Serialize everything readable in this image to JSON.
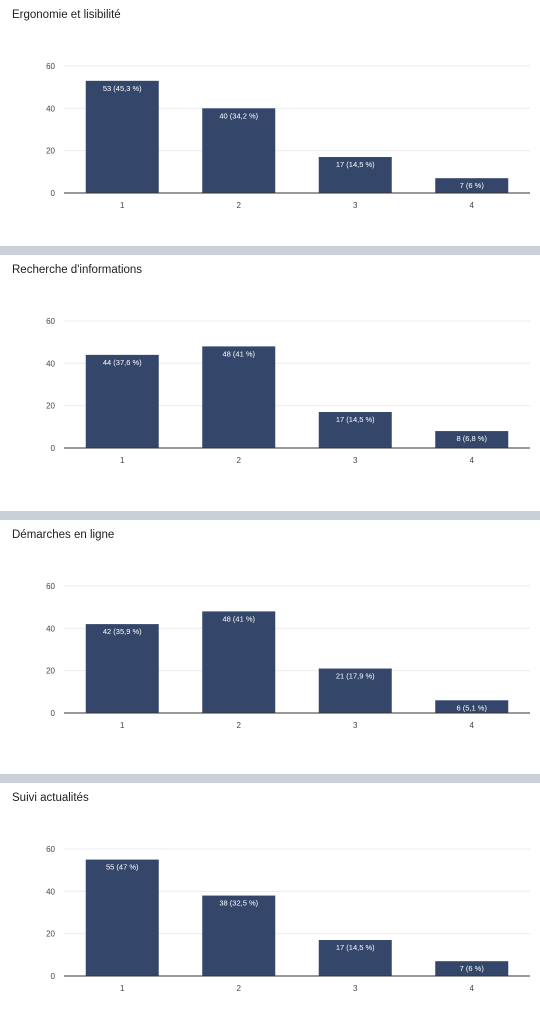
{
  "style": {
    "bar_color": "#34476a",
    "grid_color": "#ececec",
    "axis_color": "#333333",
    "separator_color": "#c9d0d7"
  },
  "chart_data": [
    {
      "type": "bar",
      "title": "Ergonomie et lisibilité",
      "categories": [
        "1",
        "2",
        "3",
        "4"
      ],
      "values": [
        53,
        40,
        17,
        7
      ],
      "data_labels": [
        "53 (45,3 %)",
        "40 (34,2 %)",
        "17 (14,5 %)",
        "7 (6 %)"
      ],
      "yticks": [
        "0",
        "20",
        "40",
        "60"
      ],
      "ylim": [
        0,
        60
      ],
      "grid": true,
      "legend": "none"
    },
    {
      "type": "bar",
      "title": "Recherche d'informations",
      "categories": [
        "1",
        "2",
        "3",
        "4"
      ],
      "values": [
        44,
        48,
        17,
        8
      ],
      "data_labels": [
        "44 (37,6 %)",
        "48 (41 %)",
        "17 (14,5 %)",
        "8 (6,8 %)"
      ],
      "yticks": [
        "0",
        "20",
        "40",
        "60"
      ],
      "ylim": [
        0,
        60
      ],
      "grid": true,
      "legend": "none"
    },
    {
      "type": "bar",
      "title": "Démarches en ligne",
      "categories": [
        "1",
        "2",
        "3",
        "4"
      ],
      "values": [
        42,
        48,
        21,
        6
      ],
      "data_labels": [
        "42 (35,9 %)",
        "48 (41 %)",
        "21 (17,9 %)",
        "6 (5,1 %)"
      ],
      "yticks": [
        "0",
        "20",
        "40",
        "60"
      ],
      "ylim": [
        0,
        60
      ],
      "grid": true,
      "legend": "none"
    },
    {
      "type": "bar",
      "title": "Suivi actualités",
      "categories": [
        "1",
        "2",
        "3",
        "4"
      ],
      "values": [
        55,
        38,
        17,
        7
      ],
      "data_labels": [
        "55 (47 %)",
        "38 (32,5 %)",
        "17 (14,5 %)",
        "7 (6 %)"
      ],
      "yticks": [
        "0",
        "20",
        "40",
        "60"
      ],
      "ylim": [
        0,
        60
      ],
      "grid": true,
      "legend": "none"
    }
  ]
}
